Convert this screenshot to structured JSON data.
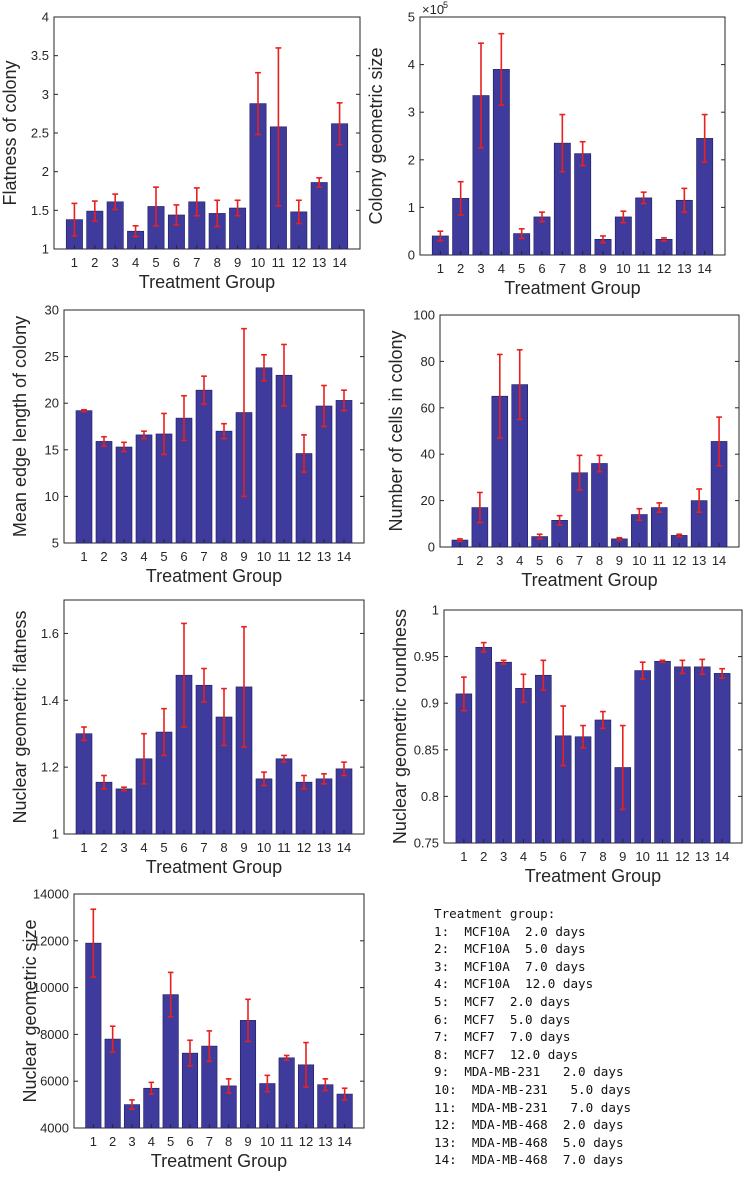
{
  "colors": {
    "bar": "#3f3b9c",
    "bar_edge": "#1e1b5e",
    "error": "#e8201f",
    "axis": "#262626"
  },
  "legend": {
    "title": "Treatment group:",
    "entries": [
      "1:  MCF10A  2.0 days",
      "2:  MCF10A  5.0 days",
      "3:  MCF10A  7.0 days",
      "4:  MCF10A  12.0 days",
      "5:  MCF7  2.0 days",
      "6:  MCF7  5.0 days",
      "7:  MCF7  7.0 days",
      "8:  MCF7  12.0 days",
      "9:  MDA-MB-231   2.0 days",
      "10:  MDA-MB-231   5.0 days",
      "11:  MDA-MB-231   7.0 days",
      "12:  MDA-MB-468  2.0 days",
      "13:  MDA-MB-468  5.0 days",
      "14:  MDA-MB-468  7.0 days"
    ]
  },
  "chart_data": [
    {
      "id": "flatness-of-colony",
      "type": "bar",
      "xlabel": "Treatment Group",
      "ylabel": "Flatness of colony",
      "categories": [
        "1",
        "2",
        "3",
        "4",
        "5",
        "6",
        "7",
        "8",
        "9",
        "10",
        "11",
        "12",
        "13",
        "14"
      ],
      "values": [
        1.38,
        1.49,
        1.61,
        1.23,
        1.55,
        1.44,
        1.61,
        1.46,
        1.53,
        2.88,
        2.58,
        1.48,
        1.86,
        2.62
      ],
      "errors": [
        0.21,
        0.13,
        0.1,
        0.07,
        0.25,
        0.13,
        0.18,
        0.17,
        0.1,
        0.4,
        1.02,
        0.15,
        0.06,
        0.27
      ],
      "ylim": [
        1,
        4
      ],
      "yticks": [
        "1",
        "1.5",
        "2",
        "2.5",
        "3",
        "3.5",
        "4"
      ]
    },
    {
      "id": "colony-geometric-size",
      "type": "bar",
      "xlabel": "Treatment Group",
      "ylabel": "Colony geometric size",
      "exponent": "×10",
      "exponent_power": "5",
      "categories": [
        "1",
        "2",
        "3",
        "4",
        "5",
        "6",
        "7",
        "8",
        "9",
        "10",
        "11",
        "12",
        "13",
        "14"
      ],
      "values": [
        0.4,
        1.19,
        3.35,
        3.9,
        0.45,
        0.8,
        2.35,
        2.13,
        0.33,
        0.8,
        1.2,
        0.33,
        1.15,
        2.45
      ],
      "errors": [
        0.1,
        0.35,
        1.1,
        0.75,
        0.1,
        0.1,
        0.6,
        0.25,
        0.07,
        0.12,
        0.12,
        0.03,
        0.25,
        0.5
      ],
      "ylim": [
        0,
        5
      ],
      "yticks": [
        "0",
        "1",
        "2",
        "3",
        "4",
        "5"
      ]
    },
    {
      "id": "mean-edge-length",
      "type": "bar",
      "xlabel": "Treatment Group",
      "ylabel": "Mean edge length of colony",
      "categories": [
        "1",
        "2",
        "3",
        "4",
        "5",
        "6",
        "7",
        "8",
        "9",
        "10",
        "11",
        "12",
        "13",
        "14"
      ],
      "values": [
        19.2,
        15.9,
        15.3,
        16.6,
        16.7,
        18.4,
        21.4,
        17.0,
        19.0,
        23.8,
        23.0,
        14.6,
        19.7,
        20.3
      ],
      "errors": [
        0.1,
        0.5,
        0.5,
        0.4,
        2.2,
        2.4,
        1.5,
        0.8,
        9.0,
        1.4,
        3.3,
        2.0,
        2.2,
        1.1
      ],
      "ylim": [
        5,
        30
      ],
      "yticks": [
        "5",
        "10",
        "15",
        "20",
        "25",
        "30"
      ]
    },
    {
      "id": "number-of-cells",
      "type": "bar",
      "xlabel": "Treatment Group",
      "ylabel": "Number of cells in colony",
      "categories": [
        "1",
        "2",
        "3",
        "4",
        "5",
        "6",
        "7",
        "8",
        "9",
        "10",
        "11",
        "12",
        "13",
        "14"
      ],
      "values": [
        3,
        17,
        65,
        70,
        4.5,
        11.5,
        32,
        36,
        3.5,
        14,
        17,
        5,
        20,
        45.5
      ],
      "errors": [
        0.5,
        6.5,
        18,
        15,
        1,
        2,
        7.5,
        3.5,
        0.5,
        2.5,
        2,
        0.5,
        5,
        10.5
      ],
      "ylim": [
        0,
        100
      ],
      "yticks": [
        "0",
        "20",
        "40",
        "60",
        "80",
        "100"
      ]
    },
    {
      "id": "nuclear-geometric-flatness",
      "type": "bar",
      "xlabel": "Treatment Group",
      "ylabel": "Nuclear geometric flatness",
      "categories": [
        "1",
        "2",
        "3",
        "4",
        "5",
        "6",
        "7",
        "8",
        "9",
        "10",
        "11",
        "12",
        "13",
        "14"
      ],
      "values": [
        1.3,
        1.155,
        1.135,
        1.225,
        1.305,
        1.475,
        1.445,
        1.35,
        1.44,
        1.165,
        1.225,
        1.155,
        1.165,
        1.195
      ],
      "errors": [
        0.02,
        0.02,
        0.005,
        0.075,
        0.07,
        0.155,
        0.05,
        0.085,
        0.18,
        0.02,
        0.01,
        0.02,
        0.015,
        0.02
      ],
      "ylim": [
        1,
        1.7
      ],
      "yticks": [
        "1",
        "1.2",
        "1.4",
        "1.6"
      ],
      "ytick_values": [
        1,
        1.2,
        1.4,
        1.6
      ]
    },
    {
      "id": "nuclear-geometric-roundness",
      "type": "bar",
      "xlabel": "Treatment Group",
      "ylabel": "Nuclear geometric roundness",
      "categories": [
        "1",
        "2",
        "3",
        "4",
        "5",
        "6",
        "7",
        "8",
        "9",
        "10",
        "11",
        "12",
        "13",
        "14"
      ],
      "values": [
        0.91,
        0.96,
        0.944,
        0.916,
        0.93,
        0.865,
        0.864,
        0.882,
        0.831,
        0.935,
        0.945,
        0.939,
        0.939,
        0.932
      ],
      "errors": [
        0.018,
        0.005,
        0.002,
        0.015,
        0.016,
        0.032,
        0.012,
        0.009,
        0.045,
        0.009,
        0.001,
        0.007,
        0.008,
        0.005
      ],
      "ylim": [
        0.75,
        1
      ],
      "yticks": [
        "0.75",
        "0.8",
        "0.85",
        "0.9",
        "0.95",
        "1"
      ]
    },
    {
      "id": "nuclear-geometric-size",
      "type": "bar",
      "xlabel": "Treatment Group",
      "ylabel": "Nuclear geometric size",
      "categories": [
        "1",
        "2",
        "3",
        "4",
        "5",
        "6",
        "7",
        "8",
        "9",
        "10",
        "11",
        "12",
        "13",
        "14"
      ],
      "values": [
        11900,
        7800,
        5000,
        5700,
        9700,
        7200,
        7500,
        5800,
        8600,
        5900,
        7000,
        6700,
        5850,
        5450
      ],
      "errors": [
        1450,
        550,
        200,
        250,
        950,
        550,
        650,
        300,
        900,
        350,
        100,
        950,
        250,
        250
      ],
      "ylim": [
        4000,
        14000
      ],
      "yticks": [
        "4000",
        "6000",
        "8000",
        "10000",
        "12000",
        "14000"
      ]
    }
  ]
}
